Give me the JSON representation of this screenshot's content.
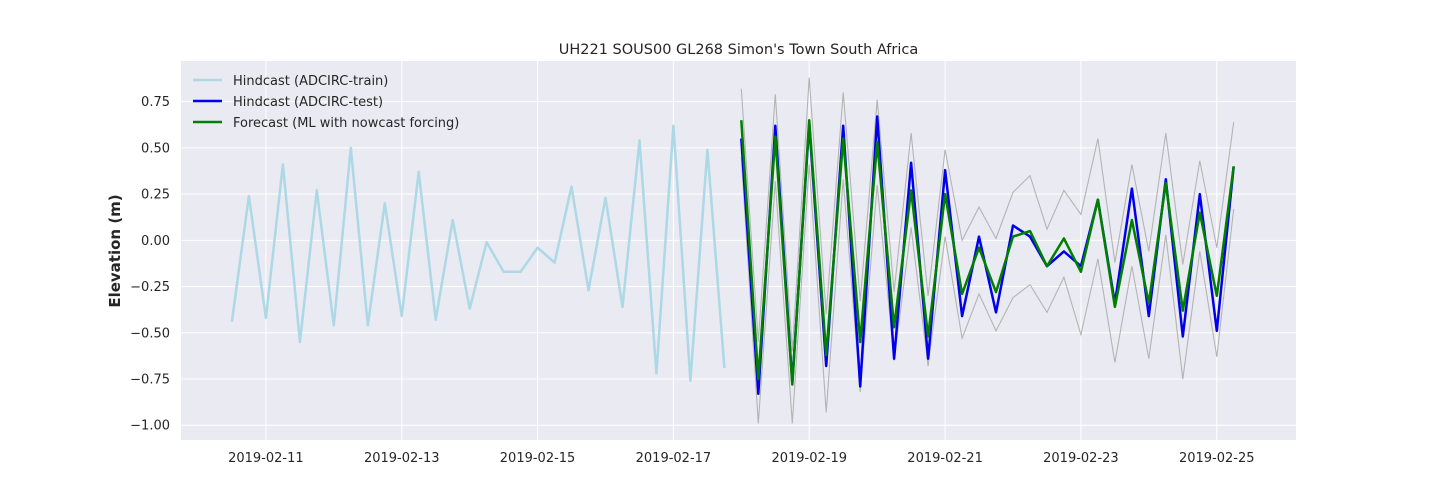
{
  "chart_data": {
    "type": "line",
    "title": "UH221 SOUS00 GL268 Simon's Town South Africa",
    "xlabel": "",
    "ylabel": "Elevation (m)",
    "x_axis": "date",
    "xlim": [
      "2019-02-09T18:00",
      "2019-02-26T04:00"
    ],
    "ylim": [
      -1.08,
      0.97
    ],
    "grid": true,
    "legend_position": "top-left",
    "x_ticks": [
      "2019-02-11",
      "2019-02-13",
      "2019-02-15",
      "2019-02-17",
      "2019-02-19",
      "2019-02-21",
      "2019-02-23",
      "2019-02-25"
    ],
    "y_ticks": [
      -1.0,
      -0.75,
      -0.5,
      -0.25,
      0.0,
      0.25,
      0.5,
      0.75
    ],
    "y_tick_labels": [
      "−1.00",
      "−0.75",
      "−0.50",
      "−0.25",
      "0.00",
      "0.25",
      "0.50",
      "0.75"
    ],
    "colors": {
      "train": "#add8e6",
      "test": "#0000ee",
      "forecast": "#008000",
      "band": "#b4b4b4",
      "plot_bg": "#eaeaf2",
      "grid": "#ffffff"
    },
    "series": [
      {
        "name": "Hindcast (ADCIRC-train)",
        "x": [
          "2019-02-10T12:00",
          "2019-02-10T18:00",
          "2019-02-11T00:00",
          "2019-02-11T06:00",
          "2019-02-11T12:00",
          "2019-02-11T18:00",
          "2019-02-12T00:00",
          "2019-02-12T06:00",
          "2019-02-12T12:00",
          "2019-02-12T18:00",
          "2019-02-13T00:00",
          "2019-02-13T06:00",
          "2019-02-13T12:00",
          "2019-02-13T18:00",
          "2019-02-14T00:00",
          "2019-02-14T06:00",
          "2019-02-14T12:00",
          "2019-02-14T18:00",
          "2019-02-15T00:00",
          "2019-02-15T06:00",
          "2019-02-15T12:00",
          "2019-02-15T18:00",
          "2019-02-16T00:00",
          "2019-02-16T06:00",
          "2019-02-16T12:00",
          "2019-02-16T18:00",
          "2019-02-17T00:00",
          "2019-02-17T06:00",
          "2019-02-17T12:00",
          "2019-02-17T18:00"
        ],
        "values": [
          -0.44,
          0.24,
          -0.42,
          0.41,
          -0.55,
          0.27,
          -0.46,
          0.5,
          -0.46,
          0.2,
          -0.41,
          0.37,
          -0.43,
          0.11,
          -0.37,
          -0.01,
          -0.17,
          -0.17,
          -0.04,
          -0.12,
          0.29,
          -0.27,
          0.23,
          -0.36,
          0.54,
          -0.72,
          0.62,
          -0.76,
          0.49,
          -0.69
        ]
      },
      {
        "name": "Hindcast (ADCIRC-test)",
        "x": [
          "2019-02-18T00:00",
          "2019-02-18T06:00",
          "2019-02-18T12:00",
          "2019-02-18T18:00",
          "2019-02-19T00:00",
          "2019-02-19T06:00",
          "2019-02-19T12:00",
          "2019-02-19T18:00",
          "2019-02-20T00:00",
          "2019-02-20T06:00",
          "2019-02-20T12:00",
          "2019-02-20T18:00",
          "2019-02-21T00:00",
          "2019-02-21T06:00",
          "2019-02-21T12:00",
          "2019-02-21T18:00",
          "2019-02-22T00:00",
          "2019-02-22T06:00",
          "2019-02-22T12:00",
          "2019-02-22T18:00",
          "2019-02-23T00:00",
          "2019-02-23T06:00",
          "2019-02-23T12:00",
          "2019-02-23T18:00",
          "2019-02-24T00:00",
          "2019-02-24T06:00",
          "2019-02-24T12:00",
          "2019-02-24T18:00",
          "2019-02-25T00:00",
          "2019-02-25T06:00"
        ],
        "values": [
          0.55,
          -0.83,
          0.62,
          -0.77,
          0.63,
          -0.68,
          0.62,
          -0.79,
          0.67,
          -0.64,
          0.42,
          -0.64,
          0.38,
          -0.41,
          0.02,
          -0.39,
          0.08,
          0.02,
          -0.14,
          -0.06,
          -0.14,
          0.22,
          -0.34,
          0.28,
          -0.41,
          0.33,
          -0.52,
          0.25,
          -0.49,
          0.4
        ]
      },
      {
        "name": "Forecast (ML with nowcast forcing)",
        "x": [
          "2019-02-18T00:00",
          "2019-02-18T06:00",
          "2019-02-18T12:00",
          "2019-02-18T18:00",
          "2019-02-19T00:00",
          "2019-02-19T06:00",
          "2019-02-19T12:00",
          "2019-02-19T18:00",
          "2019-02-20T00:00",
          "2019-02-20T06:00",
          "2019-02-20T12:00",
          "2019-02-20T18:00",
          "2019-02-21T00:00",
          "2019-02-21T06:00",
          "2019-02-21T12:00",
          "2019-02-21T18:00",
          "2019-02-22T00:00",
          "2019-02-22T06:00",
          "2019-02-22T12:00",
          "2019-02-22T18:00",
          "2019-02-23T00:00",
          "2019-02-23T06:00",
          "2019-02-23T12:00",
          "2019-02-23T18:00",
          "2019-02-24T00:00",
          "2019-02-24T06:00",
          "2019-02-24T12:00",
          "2019-02-24T18:00",
          "2019-02-25T00:00",
          "2019-02-25T06:00"
        ],
        "values": [
          0.65,
          -0.75,
          0.56,
          -0.78,
          0.65,
          -0.62,
          0.55,
          -0.55,
          0.53,
          -0.47,
          0.27,
          -0.52,
          0.25,
          -0.29,
          -0.04,
          -0.28,
          0.02,
          0.05,
          -0.14,
          0.01,
          -0.17,
          0.22,
          -0.36,
          0.11,
          -0.34,
          0.31,
          -0.38,
          0.15,
          -0.3,
          0.4
        ]
      }
    ],
    "bands": [
      {
        "x": [
          "2019-02-18T00:00",
          "2019-02-18T06:00",
          "2019-02-18T12:00",
          "2019-02-18T18:00",
          "2019-02-19T00:00",
          "2019-02-19T06:00",
          "2019-02-19T12:00",
          "2019-02-19T18:00",
          "2019-02-20T00:00",
          "2019-02-20T06:00",
          "2019-02-20T12:00",
          "2019-02-20T18:00",
          "2019-02-21T00:00",
          "2019-02-21T06:00",
          "2019-02-21T12:00",
          "2019-02-21T18:00",
          "2019-02-22T00:00",
          "2019-02-22T06:00",
          "2019-02-22T12:00",
          "2019-02-22T18:00",
          "2019-02-23T00:00",
          "2019-02-23T06:00",
          "2019-02-23T12:00",
          "2019-02-23T18:00",
          "2019-02-24T00:00",
          "2019-02-24T06:00",
          "2019-02-24T12:00",
          "2019-02-24T18:00",
          "2019-02-25T00:00",
          "2019-02-25T06:00"
        ],
        "upper": [
          0.82,
          -0.55,
          0.79,
          -0.6,
          0.88,
          -0.4,
          0.8,
          -0.33,
          0.76,
          -0.28,
          0.58,
          -0.3,
          0.49,
          0.0,
          0.18,
          0.01,
          0.26,
          0.35,
          0.06,
          0.27,
          0.14,
          0.55,
          -0.12,
          0.41,
          -0.06,
          0.58,
          -0.13,
          0.43,
          -0.04,
          0.64
        ],
        "lower": [
          0.45,
          -0.99,
          0.32,
          -0.99,
          0.41,
          -0.93,
          0.33,
          -0.82,
          0.3,
          -0.65,
          0.07,
          -0.68,
          0.02,
          -0.53,
          -0.29,
          -0.49,
          -0.31,
          -0.24,
          -0.39,
          -0.2,
          -0.51,
          -0.1,
          -0.66,
          -0.14,
          -0.64,
          0.03,
          -0.75,
          -0.06,
          -0.63,
          0.17
        ]
      }
    ]
  }
}
